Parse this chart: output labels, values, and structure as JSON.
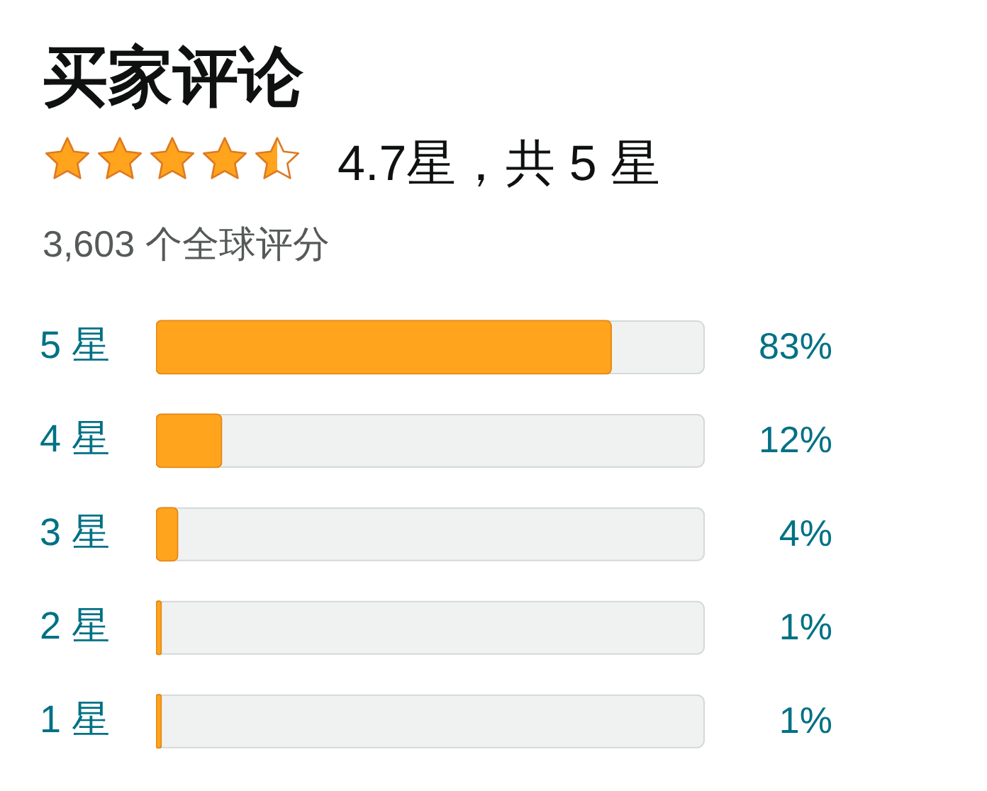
{
  "chart_data": {
    "type": "bar",
    "orientation": "horizontal",
    "title": "买家评论",
    "subtitle": "4.7星，共 5 星",
    "annotations": [
      "3,603 个全球评分"
    ],
    "categories": [
      "5 星",
      "4 星",
      "3 星",
      "2 星",
      "1 星"
    ],
    "values": [
      83,
      12,
      4,
      1,
      1
    ],
    "value_labels": [
      "83%",
      "12%",
      "4%",
      "1%",
      "1%"
    ],
    "color": "#ffa41c",
    "xlim": [
      0,
      100
    ],
    "tick_labels": "y",
    "grid": false,
    "legend": false
  }
}
